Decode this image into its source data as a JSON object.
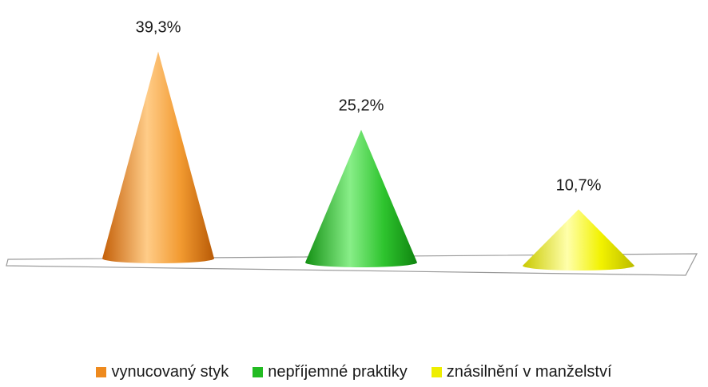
{
  "chart_data": {
    "type": "bar",
    "style": "3d-cone",
    "categories": [
      "vynucovaný styk",
      "nepříjemné praktiky",
      "znásilnění v manželství"
    ],
    "values": [
      39.3,
      25.2,
      10.7
    ],
    "value_labels": [
      "39,3%",
      "25,2%",
      "10,7%"
    ],
    "colors": [
      "#ee8a1e",
      "#22bb22",
      "#eeee00"
    ],
    "legend": {
      "position": "bottom",
      "items": [
        {
          "label": "vynucovaný styk",
          "color": "#ee8a1e"
        },
        {
          "label": "nepříjemné praktiky",
          "color": "#22bb22"
        },
        {
          "label": "znásilnění v manželství",
          "color": "#eeee00"
        }
      ]
    },
    "grid": false,
    "ylim": [
      0,
      40
    ]
  }
}
